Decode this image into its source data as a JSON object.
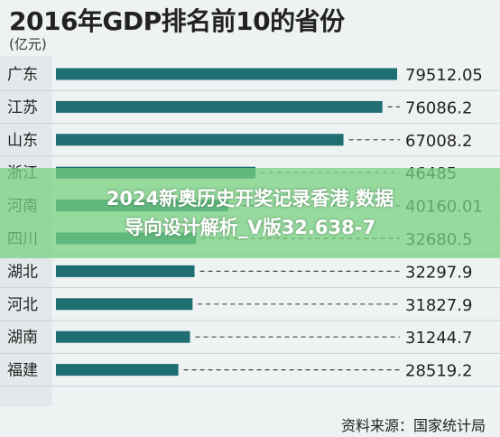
{
  "chart_data": {
    "type": "bar",
    "orientation": "horizontal",
    "title": "2016年GDP排名前10的省份",
    "unit": "(亿元)",
    "categories": [
      "广东",
      "江苏",
      "山东",
      "浙江",
      "河南",
      "四川",
      "湖北",
      "河北",
      "湖南",
      "福建"
    ],
    "values": [
      79512.05,
      76086.2,
      67008.2,
      46485,
      40160.01,
      32680.5,
      32297.9,
      31827.9,
      31244.7,
      28519.2
    ],
    "value_labels": [
      "79512.05",
      "76086.2",
      "67008.2",
      "46485",
      "40160.01",
      "32680.5",
      "32297.9",
      "31827.9",
      "31244.7",
      "28519.2"
    ],
    "xlim": [
      0,
      80000
    ],
    "source": "资料来源：国家统计局",
    "bar_color": "#1e6e72"
  },
  "overlay": {
    "line1": "2024新奥历史开奖记录香港,数据",
    "line2": "导向设计解析_V版32.638-7"
  }
}
